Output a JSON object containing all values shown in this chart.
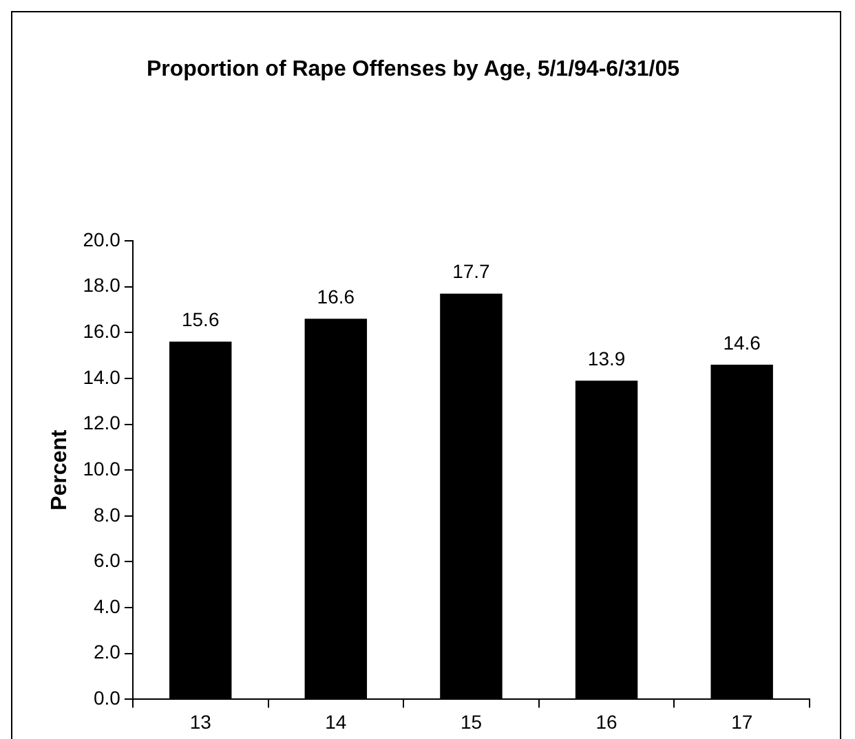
{
  "chart_data": {
    "type": "bar",
    "title": "Proportion of Rape Offenses by Age, 5/1/94-6/31/05",
    "ylabel": "Percent",
    "categories": [
      "13",
      "14",
      "15",
      "16",
      "17"
    ],
    "values": [
      15.6,
      16.6,
      17.7,
      13.9,
      14.6
    ],
    "color": "#000000",
    "ylim": [
      0,
      20
    ],
    "yticks": [
      {
        "value": 0,
        "label": "0.0"
      },
      {
        "value": 2,
        "label": "2.0"
      },
      {
        "value": 4,
        "label": "4.0"
      },
      {
        "value": 6,
        "label": "6.0"
      },
      {
        "value": 8,
        "label": "8.0"
      },
      {
        "value": 10,
        "label": "10.0"
      },
      {
        "value": 12,
        "label": "12.0"
      },
      {
        "value": 14,
        "label": "14.0"
      },
      {
        "value": 16,
        "label": "16.0"
      },
      {
        "value": 18,
        "label": "18.0"
      },
      {
        "value": 20,
        "label": "20.0"
      }
    ],
    "grid": false,
    "legend": false,
    "data_labels": true
  }
}
